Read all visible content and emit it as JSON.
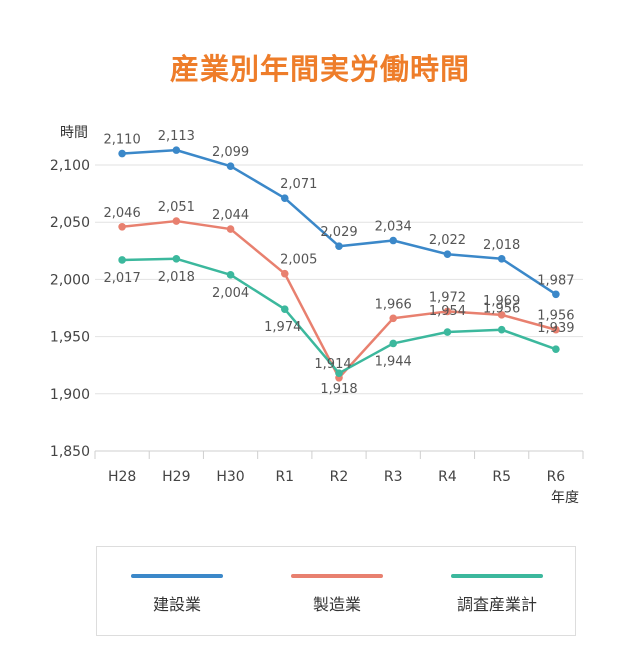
{
  "chart_data": {
    "type": "line",
    "title": "産業別年間実労働時間",
    "ylabel": "時間",
    "xlabel": "年度",
    "categories": [
      "H28",
      "H29",
      "H30",
      "R1",
      "R2",
      "R3",
      "R4",
      "R5",
      "R6"
    ],
    "ylim": [
      1850,
      2100
    ],
    "yticks": [
      1850,
      1900,
      1950,
      2000,
      2050,
      2100
    ],
    "ytick_labels": [
      "1,850",
      "1,900",
      "1,950",
      "2,000",
      "2,050",
      "2,100"
    ],
    "grid": true,
    "legend_position": "bottom",
    "series": [
      {
        "name": "建設業",
        "color": "#3b88c9",
        "values": [
          2110,
          2113,
          2099,
          2071,
          2029,
          2034,
          2022,
          2018,
          1987
        ],
        "labels": [
          "2,110",
          "2,113",
          "2,099",
          "2,071",
          "2,029",
          "2,034",
          "2,022",
          "2,018",
          "1,987"
        ]
      },
      {
        "name": "製造業",
        "color": "#e8806f",
        "values": [
          2046,
          2051,
          2044,
          2005,
          1914,
          1966,
          1972,
          1969,
          1956
        ],
        "labels": [
          "2,046",
          "2,051",
          "2,044",
          "2,005",
          "1,914",
          "1,966",
          "1,972",
          "1,969",
          "1,956"
        ]
      },
      {
        "name": "調査産業計",
        "color": "#3cb89d",
        "values": [
          2017,
          2018,
          2004,
          1974,
          1918,
          1944,
          1954,
          1956,
          1939
        ],
        "labels": [
          "2,017",
          "2,018",
          "2,004",
          "1,974",
          "1,918",
          "1,944",
          "1,954",
          "1,956",
          "1,939"
        ]
      }
    ]
  }
}
